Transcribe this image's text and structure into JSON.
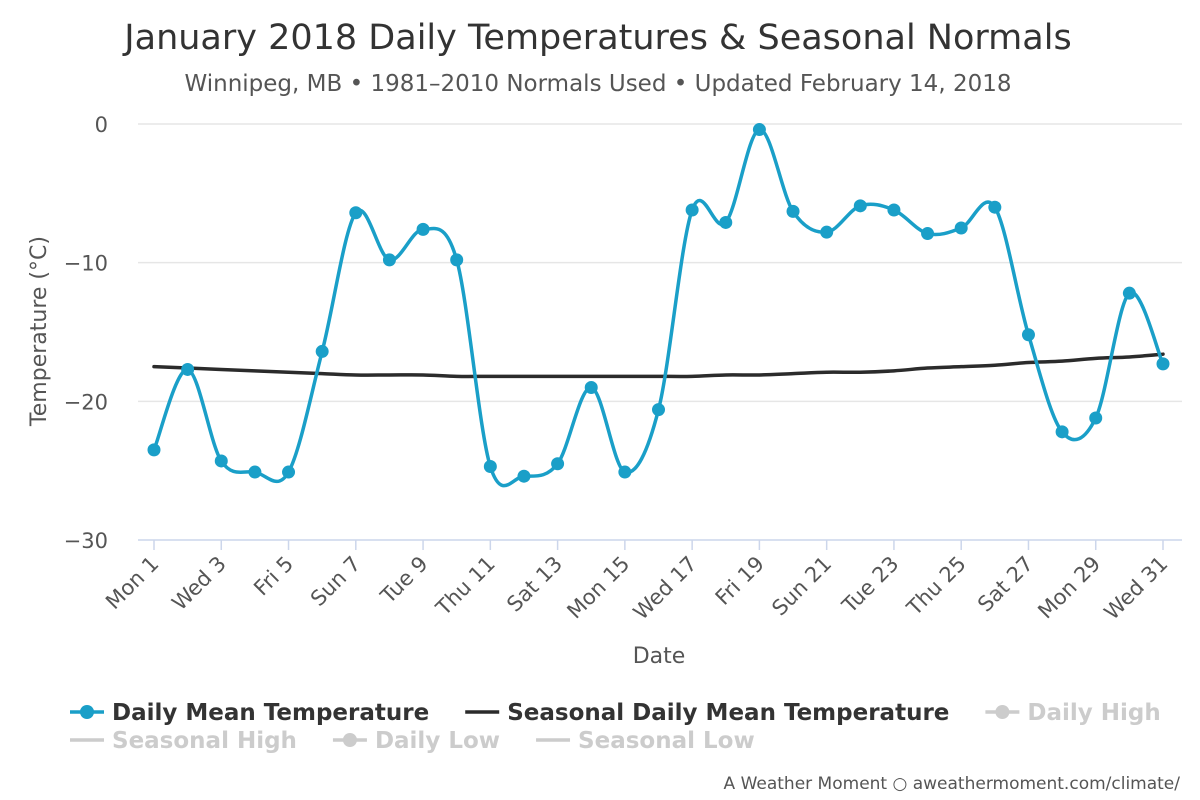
{
  "chart_data": {
    "type": "line",
    "title": "January 2018 Daily Temperatures & Seasonal Normals",
    "subtitle": "Winnipeg, MB • 1981–2010 Normals Used • Updated February 14, 2018",
    "xlabel": "Date",
    "ylabel": "Temperature (°C)",
    "ylim": [
      -30,
      0
    ],
    "yticks": [
      0,
      -10,
      -20,
      -30
    ],
    "grid": true,
    "legend_position": "bottom",
    "x": [
      1,
      2,
      3,
      4,
      5,
      6,
      7,
      8,
      9,
      10,
      11,
      12,
      13,
      14,
      15,
      16,
      17,
      18,
      19,
      20,
      21,
      22,
      23,
      24,
      25,
      26,
      27,
      28,
      29,
      30,
      31
    ],
    "x_tick_labels": [
      {
        "day": 1,
        "label": "Mon 1"
      },
      {
        "day": 3,
        "label": "Wed 3"
      },
      {
        "day": 5,
        "label": "Fri 5"
      },
      {
        "day": 7,
        "label": "Sun 7"
      },
      {
        "day": 9,
        "label": "Tue 9"
      },
      {
        "day": 11,
        "label": "Thu 11"
      },
      {
        "day": 13,
        "label": "Sat 13"
      },
      {
        "day": 15,
        "label": "Mon 15"
      },
      {
        "day": 17,
        "label": "Wed 17"
      },
      {
        "day": 19,
        "label": "Fri 19"
      },
      {
        "day": 21,
        "label": "Sun 21"
      },
      {
        "day": 23,
        "label": "Tue 23"
      },
      {
        "day": 25,
        "label": "Thu 25"
      },
      {
        "day": 27,
        "label": "Sat 27"
      },
      {
        "day": 29,
        "label": "Mon 29"
      },
      {
        "day": 31,
        "label": "Wed 31"
      }
    ],
    "series": [
      {
        "name": "Daily Mean Temperature",
        "color": "#1a9fc8",
        "visible": true,
        "markers": true,
        "values": [
          -23.5,
          -17.7,
          -24.3,
          -25.1,
          -25.1,
          -16.4,
          -6.4,
          -9.8,
          -7.6,
          -9.8,
          -24.7,
          -25.4,
          -24.5,
          -19.0,
          -25.1,
          -20.6,
          -6.2,
          -7.1,
          -0.4,
          -6.3,
          -7.8,
          -5.9,
          -6.2,
          -7.9,
          -7.5,
          -6.0,
          -15.2,
          -22.2,
          -21.2,
          -12.2,
          -17.3
        ]
      },
      {
        "name": "Seasonal Daily Mean Temperature",
        "color": "#2b2b2b",
        "visible": true,
        "markers": false,
        "values": [
          -17.5,
          -17.6,
          -17.7,
          -17.8,
          -17.9,
          -18.0,
          -18.1,
          -18.1,
          -18.1,
          -18.2,
          -18.2,
          -18.2,
          -18.2,
          -18.2,
          -18.2,
          -18.2,
          -18.2,
          -18.1,
          -18.1,
          -18.0,
          -17.9,
          -17.9,
          -17.8,
          -17.6,
          -17.5,
          -17.4,
          -17.2,
          -17.1,
          -16.9,
          -16.8,
          -16.6
        ]
      }
    ],
    "legend": [
      {
        "name": "Daily Mean Temperature",
        "color": "#1a9fc8",
        "marker": true,
        "active": true
      },
      {
        "name": "Seasonal Daily Mean Temperature",
        "color": "#2b2b2b",
        "marker": false,
        "active": true
      },
      {
        "name": "Daily High",
        "color": "#cccccc",
        "marker": true,
        "active": false
      },
      {
        "name": "Seasonal High",
        "color": "#cccccc",
        "marker": false,
        "active": false
      },
      {
        "name": "Daily Low",
        "color": "#cccccc",
        "marker": true,
        "active": false
      },
      {
        "name": "Seasonal Low",
        "color": "#cccccc",
        "marker": false,
        "active": false
      }
    ]
  },
  "credit": "A Weather Moment ○ aweathermoment.com/climate/"
}
